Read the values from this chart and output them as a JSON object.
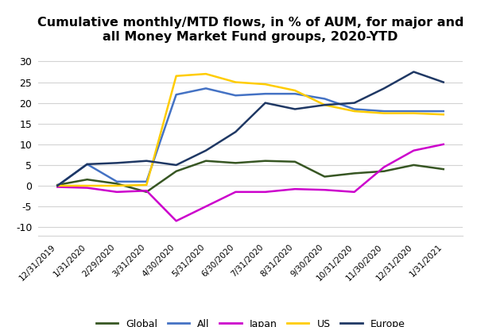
{
  "title": "Cumulative monthly/MTD flows, in % of AUM, for major and\nall Money Market Fund groups, 2020-YTD",
  "xlabels": [
    "12/31/2019",
    "1/31/2020",
    "2/29/2020",
    "3/31/2020",
    "4/30/2020",
    "5/31/2020",
    "6/30/2020",
    "7/31/2020",
    "8/31/2020",
    "9/30/2020",
    "10/31/2020",
    "11/30/2020",
    "12/31/2020",
    "1/31/2021"
  ],
  "series": {
    "Global": {
      "color": "#375623",
      "values": [
        0.2,
        1.5,
        0.5,
        -1.5,
        3.5,
        6.0,
        5.5,
        6.0,
        5.8,
        2.2,
        3.0,
        3.5,
        5.0,
        4.0
      ]
    },
    "All": {
      "color": "#4472C4",
      "values": [
        0.0,
        5.2,
        1.0,
        1.0,
        22.0,
        23.5,
        21.8,
        22.2,
        22.2,
        21.0,
        18.5,
        18.0,
        18.0,
        18.0
      ]
    },
    "Japan": {
      "color": "#CC00CC",
      "values": [
        -0.3,
        -0.5,
        -1.5,
        -1.2,
        -8.5,
        -5.0,
        -1.5,
        -1.5,
        -0.8,
        -1.0,
        -1.5,
        4.5,
        8.5,
        10.0
      ]
    },
    "US": {
      "color": "#FFCC00",
      "values": [
        0.0,
        0.0,
        0.0,
        0.2,
        26.5,
        27.0,
        25.0,
        24.5,
        23.0,
        19.5,
        18.0,
        17.5,
        17.5,
        17.2
      ]
    },
    "Europe": {
      "color": "#1F3864",
      "values": [
        0.0,
        5.2,
        5.5,
        6.0,
        5.0,
        8.5,
        13.0,
        20.0,
        18.5,
        19.5,
        20.0,
        23.5,
        27.5,
        25.0
      ]
    }
  },
  "ylim": [
    -12,
    33
  ],
  "yticks": [
    -10,
    -5,
    0,
    5,
    10,
    15,
    20,
    25,
    30
  ],
  "grid_color": "#D3D3D3",
  "background_color": "#FFFFFF",
  "legend_order": [
    "Global",
    "All",
    "Japan",
    "US",
    "Europe"
  ],
  "title_fontsize": 11.5
}
